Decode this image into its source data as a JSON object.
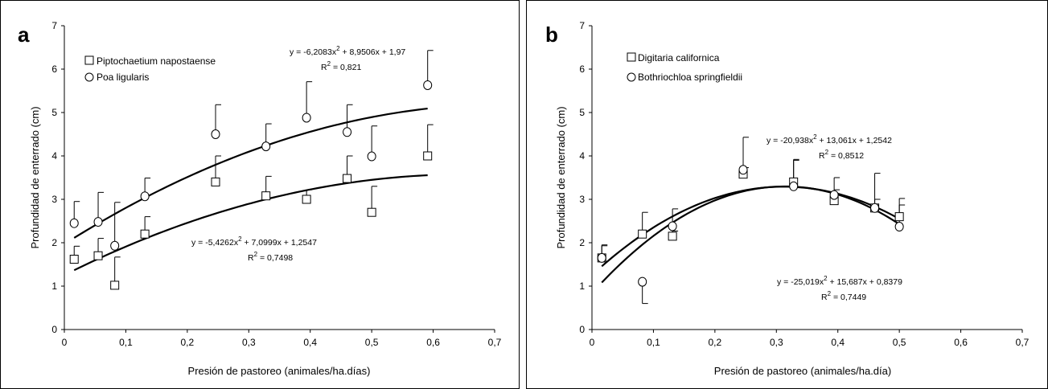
{
  "chart_data": [
    {
      "panel": "a",
      "type": "scatter",
      "xlabel": "Presión de pastoreo (animales/ha.días)",
      "ylabel": "Profundidad de enterrado (cm)",
      "xlim": [
        0,
        0.7
      ],
      "ylim": [
        0,
        7
      ],
      "xticks": [
        "0",
        "0,1",
        "0,2",
        "0,3",
        "0,4",
        "0,5",
        "0,6",
        "0,7"
      ],
      "yticks": [
        "0",
        "1",
        "2",
        "3",
        "4",
        "5",
        "6",
        "7"
      ],
      "legend_position": "top-left",
      "series": [
        {
          "name": "Piptochaetium napostaense",
          "marker": "square",
          "x": [
            0.016,
            0.055,
            0.082,
            0.131,
            0.246,
            0.328,
            0.394,
            0.46,
            0.5,
            0.591
          ],
          "y": [
            1.62,
            1.7,
            1.02,
            2.2,
            3.4,
            3.08,
            3.0,
            3.48,
            2.7,
            4.0
          ],
          "err": [
            0.3,
            0.4,
            0.65,
            0.4,
            0.6,
            0.45,
            0.22,
            0.52,
            0.6,
            0.72
          ],
          "fit": {
            "a": -5.4262,
            "b": 7.0999,
            "c": 1.2547,
            "x_range": [
              0.016,
              0.591
            ]
          },
          "equation": "y = -5,4262x",
          "equation_tail": " + 7,0999x + 1,2547",
          "r2_label": "R",
          "r2_value": " = 0,7498"
        },
        {
          "name": "Poa ligularis",
          "marker": "circle",
          "x": [
            0.016,
            0.055,
            0.082,
            0.131,
            0.246,
            0.328,
            0.394,
            0.46,
            0.5,
            0.591
          ],
          "y": [
            2.45,
            2.48,
            1.93,
            3.07,
            4.5,
            4.22,
            4.88,
            4.55,
            3.99,
            5.63
          ],
          "err": [
            0.5,
            0.68,
            1.0,
            0.42,
            0.68,
            0.52,
            0.83,
            0.63,
            0.7,
            0.8
          ],
          "fit": {
            "a": -6.2083,
            "b": 8.9506,
            "c": 1.97,
            "x_range": [
              0.016,
              0.591
            ]
          },
          "equation": "y = -6,2083x",
          "equation_tail": " + 8,9506x + 1,97",
          "r2_label": "R",
          "r2_value": " = 0,821"
        }
      ]
    },
    {
      "panel": "b",
      "type": "scatter",
      "xlabel": "Presión de pastoreo (animales/ha.día)",
      "ylabel": "Profundidad de enterrado (cm)",
      "xlim": [
        0,
        0.7
      ],
      "ylim": [
        0,
        7
      ],
      "xticks": [
        "0",
        "0,1",
        "0,2",
        "0,3",
        "0,4",
        "0,5",
        "0,6",
        "0,7"
      ],
      "yticks": [
        "0",
        "1",
        "2",
        "3",
        "4",
        "5",
        "6",
        "7"
      ],
      "legend_position": "top-left",
      "series": [
        {
          "name": "Digitaria californica",
          "marker": "square",
          "x": [
            0.016,
            0.082,
            0.131,
            0.246,
            0.328,
            0.394,
            0.46,
            0.5
          ],
          "y": [
            1.65,
            2.2,
            2.15,
            3.58,
            3.4,
            2.97,
            2.8,
            2.6
          ],
          "err": [
            0.3,
            0.5,
            0.12,
            0.15,
            0.52,
            0.25,
            0.8,
            0.42
          ],
          "fit": {
            "a": -20.938,
            "b": 13.061,
            "c": 1.2542,
            "x_range": [
              0.016,
              0.5
            ]
          },
          "equation": "y = -20,938x",
          "equation_tail": " + 13,061x + 1,2542",
          "r2_label": "R",
          "r2_value": " = 0,8512"
        },
        {
          "name": "Bothriochloa springfieldii",
          "marker": "circle",
          "x": [
            0.016,
            0.082,
            0.131,
            0.246,
            0.328,
            0.394,
            0.46,
            0.5
          ],
          "y": [
            1.65,
            1.1,
            2.38,
            3.68,
            3.3,
            3.1,
            2.8,
            2.37
          ],
          "err": [
            0.28,
            0.5,
            0.4,
            0.75,
            0.6,
            0.4,
            0.2,
            0.5
          ],
          "fit": {
            "a": -25.019,
            "b": 15.687,
            "c": 0.8379,
            "x_range": [
              0.016,
              0.5
            ]
          },
          "equation": "y = -25,019x",
          "equation_tail": " + 15,687x + 0,8379",
          "r2_label": "R",
          "r2_value": " = 0,7449"
        }
      ]
    }
  ]
}
